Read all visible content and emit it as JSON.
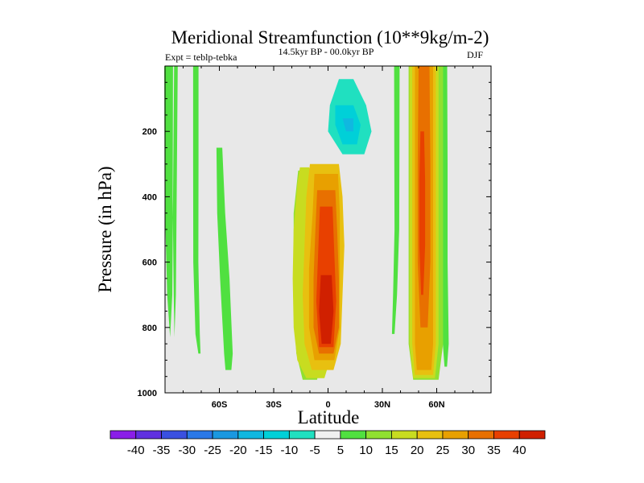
{
  "chart_data": {
    "type": "heatmap",
    "title": "Meridional Streamfunction (10**9kg/m-2)",
    "subtitle_left": "Expt = teblp-tebka",
    "subtitle_center": "14.5kyr BP - 00.0kyr BP",
    "subtitle_right": "DJF",
    "xlabel": "Latitude",
    "ylabel": "Pressure (in hPa)",
    "xlim": [
      -90,
      90
    ],
    "ylim": [
      1000,
      0
    ],
    "x_ticks": [
      {
        "value": -60,
        "label": "60S"
      },
      {
        "value": -30,
        "label": "30S"
      },
      {
        "value": 0,
        "label": "0"
      },
      {
        "value": 30,
        "label": "30N"
      },
      {
        "value": 60,
        "label": "60N"
      }
    ],
    "y_ticks": [
      {
        "value": 200,
        "label": "200"
      },
      {
        "value": 400,
        "label": "400"
      },
      {
        "value": 600,
        "label": "600"
      },
      {
        "value": 800,
        "label": "800"
      },
      {
        "value": 1000,
        "label": "1000"
      }
    ],
    "background_color": "#e8e8e8",
    "colorbar": {
      "labels": [
        "-40",
        "-35",
        "-30",
        "-25",
        "-20",
        "-15",
        "-10",
        "-5",
        "5",
        "10",
        "15",
        "20",
        "25",
        "30",
        "35",
        "40"
      ],
      "colors": [
        "#8a1ee8",
        "#6030e0",
        "#3a50e0",
        "#2a78e8",
        "#1a98e0",
        "#10b8e0",
        "#00d0d8",
        "#20e0c0",
        "#f0f0f0",
        "#50e040",
        "#90e030",
        "#c8dc20",
        "#e8c010",
        "#e8a000",
        "#e87000",
        "#e84000",
        "#d02000"
      ]
    },
    "contours": [
      {
        "level": 5,
        "lat": [
          -88,
          -88,
          -87,
          -86,
          -85,
          -84
        ],
        "p": [
          0,
          400,
          700,
          830,
          700,
          0
        ],
        "w": [
          2.4,
          2.2,
          1.8,
          1.2,
          1.0,
          1.0
        ]
      },
      {
        "level": 5,
        "lat": [
          -73,
          -73,
          -73,
          -72,
          -71
        ],
        "p": [
          0,
          300,
          600,
          820,
          880
        ],
        "w": [
          1.5,
          1.5,
          1.4,
          1.2,
          0.6
        ]
      },
      {
        "level": 5,
        "lat": [
          -60,
          -59,
          -57,
          -55,
          -55
        ],
        "p": [
          250,
          450,
          650,
          880,
          930
        ],
        "w": [
          1.6,
          2.2,
          2.6,
          2.4,
          1.6
        ]
      },
      {
        "level": 10,
        "lat": [
          -14,
          -14,
          -13,
          -12,
          -11,
          -10
        ],
        "p": [
          320,
          450,
          600,
          780,
          880,
          960
        ],
        "w": [
          2.5,
          5,
          6,
          6.5,
          6.5,
          4
        ]
      },
      {
        "level": 15,
        "lat": [
          -13,
          -12,
          -11,
          -10,
          -9,
          -8,
          -7
        ],
        "p": [
          310,
          360,
          500,
          650,
          800,
          900,
          955
        ],
        "w": [
          2.5,
          5,
          8,
          9.5,
          10,
          9,
          5
        ]
      },
      {
        "level": 20,
        "lat": [
          -2,
          -2,
          -2,
          -3,
          -3,
          -3
        ],
        "p": [
          300,
          400,
          550,
          700,
          850,
          930
        ],
        "w": [
          8,
          10,
          11,
          11,
          10,
          6
        ]
      },
      {
        "level": 25,
        "lat": [
          -1,
          -1,
          -2,
          -2,
          -2
        ],
        "p": [
          330,
          450,
          620,
          800,
          900
        ],
        "w": [
          6.5,
          7.5,
          8.5,
          8.5,
          5.5
        ]
      },
      {
        "level": 30,
        "lat": [
          -1,
          -1,
          -1,
          -1,
          -1
        ],
        "p": [
          380,
          500,
          650,
          800,
          880
        ],
        "w": [
          5,
          6,
          7,
          7,
          4
        ]
      },
      {
        "level": 35,
        "lat": [
          -1,
          -1,
          -1,
          -1
        ],
        "p": [
          430,
          580,
          720,
          860
        ],
        "w": [
          3.5,
          4.5,
          5.5,
          4
        ]
      },
      {
        "level": 40,
        "lat": [
          -1,
          -1,
          -1
        ],
        "p": [
          640,
          750,
          850
        ],
        "w": [
          3,
          4,
          2.5
        ]
      },
      {
        "level": -5,
        "lat": [
          10,
          11,
          12,
          14
        ],
        "p": [
          40,
          120,
          200,
          270
        ],
        "w": [
          4,
          10,
          12,
          6
        ]
      },
      {
        "level": -10,
        "lat": [
          9,
          11,
          12
        ],
        "p": [
          120,
          180,
          240
        ],
        "w": [
          5,
          7,
          4
        ]
      },
      {
        "level": -15,
        "lat": [
          11,
          12
        ],
        "p": [
          160,
          200
        ],
        "w": [
          3,
          2
        ]
      },
      {
        "level": 5,
        "lat": [
          38,
          38,
          38,
          37,
          36
        ],
        "p": [
          0,
          250,
          500,
          700,
          820
        ],
        "w": [
          1.5,
          1.4,
          1.3,
          1.1,
          0.7
        ]
      },
      {
        "level": 5,
        "lat": [
          64,
          64,
          64,
          65,
          65
        ],
        "p": [
          0,
          300,
          600,
          850,
          920
        ],
        "w": [
          1.8,
          2.0,
          2.0,
          1.6,
          0.7
        ]
      },
      {
        "level": 10,
        "lat": [
          54,
          54,
          54,
          54,
          54
        ],
        "p": [
          0,
          300,
          600,
          850,
          960
        ],
        "w": [
          9.5,
          9.5,
          9.5,
          9.5,
          7
        ]
      },
      {
        "level": 15,
        "lat": [
          53,
          53,
          53,
          53,
          53
        ],
        "p": [
          0,
          300,
          600,
          850,
          955
        ],
        "w": [
          8,
          8,
          8,
          8,
          6
        ]
      },
      {
        "level": 20,
        "lat": [
          53,
          53,
          53,
          53,
          53
        ],
        "p": [
          0,
          300,
          600,
          850,
          945
        ],
        "w": [
          6.5,
          6.5,
          6.5,
          6.5,
          5
        ]
      },
      {
        "level": 25,
        "lat": [
          53,
          53,
          53,
          53,
          53
        ],
        "p": [
          0,
          300,
          600,
          850,
          930
        ],
        "w": [
          5,
          5,
          5,
          5,
          4
        ]
      },
      {
        "level": 30,
        "lat": [
          53,
          53,
          53,
          53
        ],
        "p": [
          0,
          300,
          600,
          800
        ],
        "w": [
          3,
          3.5,
          3.5,
          2
        ]
      },
      {
        "level": 35,
        "lat": [
          52,
          52,
          52,
          52
        ],
        "p": [
          200,
          350,
          550,
          700
        ],
        "w": [
          1,
          1.6,
          1.6,
          0.6
        ]
      }
    ]
  }
}
